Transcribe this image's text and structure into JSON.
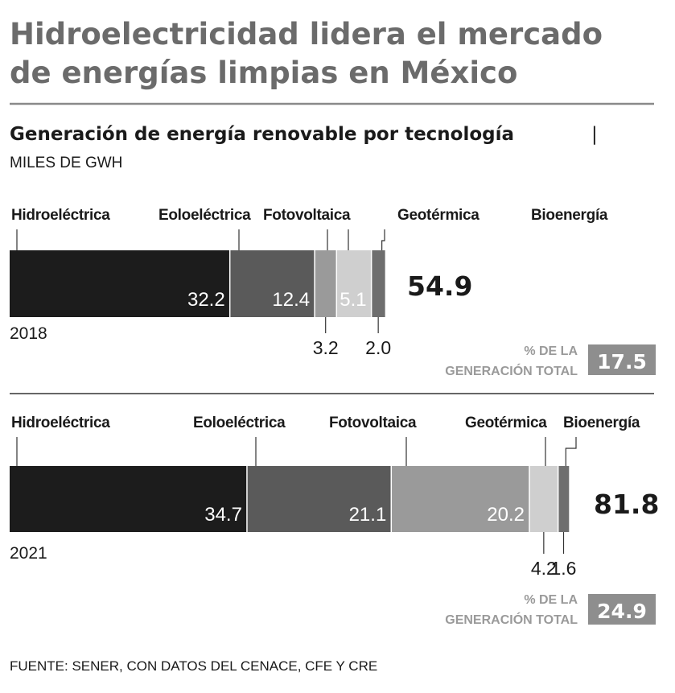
{
  "chart_data": {
    "type": "bar",
    "orientation": "horizontal-stacked",
    "title_line1": "Hidroelectricidad lidera el mercado",
    "title_line2": "de energías limpias en México",
    "subtitle": "Generación de energía renovable por tecnología",
    "subtitle_separator": "|",
    "unit": "MILES DE GWH",
    "categories": [
      "Hidroeléctrica",
      "Eoloeléctrica",
      "Fotovoltaica",
      "Geotérmica",
      "Bioenergía"
    ],
    "colors": [
      "#1c1c1c",
      "#5a5a5a",
      "#9a9a9a",
      "#cfcfcf",
      "#6e6e6e"
    ],
    "series": [
      {
        "name": "2018",
        "values": [
          32.2,
          12.4,
          3.2,
          5.1,
          2.0
        ],
        "value_labels": [
          "32.2",
          "12.4",
          "3.2",
          "5.1",
          "2.0"
        ],
        "total": "54.9",
        "pct_label_line1": "% DE LA",
        "pct_label_line2": "GENERACIÓN TOTAL",
        "pct_value": "17.5"
      },
      {
        "name": "2021",
        "values": [
          34.7,
          21.1,
          20.2,
          4.2,
          1.6
        ],
        "value_labels": [
          "34.7",
          "21.1",
          "20.2",
          "4.2",
          "1.6"
        ],
        "total": "81.8",
        "pct_label_line1": "% DE LA",
        "pct_label_line2": "GENERACIÓN TOTAL",
        "pct_value": "24.9"
      }
    ],
    "source": "FUENTE: SENER, CON DATOS  DEL CENACE, CFE Y CRE"
  }
}
